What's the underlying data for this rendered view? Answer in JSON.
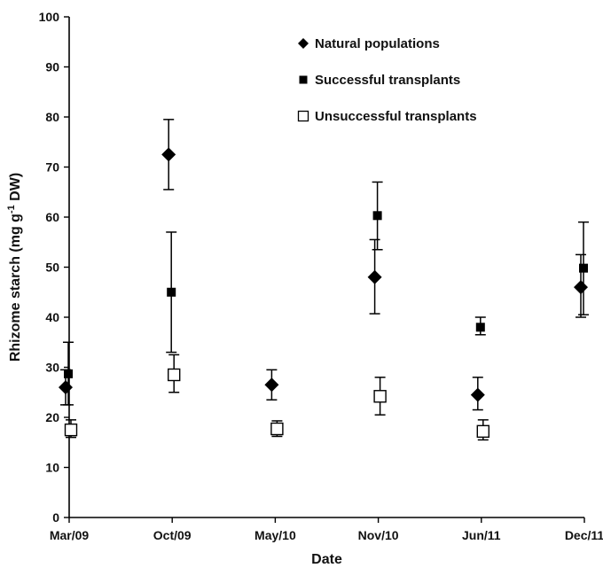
{
  "chart_data": {
    "type": "scatter",
    "xlabel": "Date",
    "ylabel": "Rhizome starch (mg g-1 DW)",
    "ylabel_prefix": "Rhizome starch (mg g",
    "ylabel_sup": "-1",
    "ylabel_suffix": " DW)",
    "ylim": [
      0,
      100
    ],
    "yticks": [
      0,
      10,
      20,
      30,
      40,
      50,
      60,
      70,
      80,
      90,
      100
    ],
    "xtick_labels": [
      "Mar/09",
      "Oct/09",
      "May/10",
      "Nov/10",
      "Jun/11",
      "Dec/11"
    ],
    "grid": false,
    "legend_position": "top-right",
    "series": [
      {
        "name": "Natural populations",
        "marker": "diamond",
        "color": "#000000",
        "points": [
          {
            "x": "Mar/09",
            "y": 26,
            "err_low": 22.5,
            "err_high": 29.5
          },
          {
            "x": "Oct/09",
            "y": 72.5,
            "err_low": 65.5,
            "err_high": 79.5
          },
          {
            "x": "May/10",
            "y": 26.5,
            "err_low": 23.5,
            "err_high": 29.5
          },
          {
            "x": "Nov/10",
            "y": 48,
            "err_low": 40.7,
            "err_high": 55.5
          },
          {
            "x": "Jun/11",
            "y": 24.5,
            "err_low": 21.5,
            "err_high": 28
          },
          {
            "x": "Dec/11",
            "y": 46,
            "err_low": 40,
            "err_high": 52.5
          }
        ]
      },
      {
        "name": "Successful transplants",
        "marker": "square-filled",
        "color": "#000000",
        "points": [
          {
            "x": "Mar/09",
            "y": 28.7,
            "err_low": 22.5,
            "err_high": 35
          },
          {
            "x": "Oct/09",
            "y": 45,
            "err_low": 33,
            "err_high": 57
          },
          {
            "x": "Nov/10",
            "y": 60.3,
            "err_low": 53.5,
            "err_high": 67
          },
          {
            "x": "Jun/11",
            "y": 38,
            "err_low": 36.5,
            "err_high": 40
          },
          {
            "x": "Dec/11",
            "y": 49.8,
            "err_low": 40.5,
            "err_high": 59
          }
        ]
      },
      {
        "name": "Unsuccessful transplants",
        "marker": "square-open",
        "color": "#000000",
        "points": [
          {
            "x": "Mar/09",
            "y": 17.5,
            "err_low": 16,
            "err_high": 19.5
          },
          {
            "x": "Oct/09",
            "y": 28.5,
            "err_low": 25,
            "err_high": 32.5
          },
          {
            "x": "May/10",
            "y": 17.7,
            "err_low": 16.2,
            "err_high": 19.3
          },
          {
            "x": "Nov/10",
            "y": 24.2,
            "err_low": 20.5,
            "err_high": 28
          },
          {
            "x": "Jun/11",
            "y": 17.2,
            "err_low": 15.5,
            "err_high": 19.5
          }
        ]
      }
    ]
  }
}
